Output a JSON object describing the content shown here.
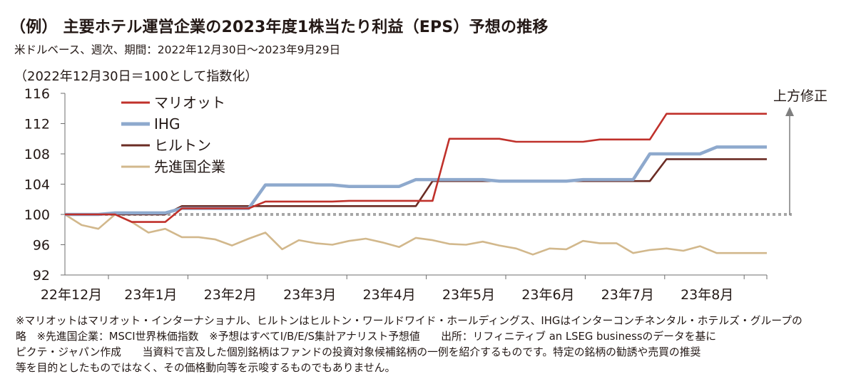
{
  "header": {
    "title": "（例） 主要ホテル運営企業の2023年度1株当たり利益（EPS）予想の推移",
    "subtitle": "米ドルベース、週次、期間：2022年12月30日〜2023年9月29日",
    "index_note": "（2022年12月30日＝100として指数化）"
  },
  "annotation": {
    "label": "上方修正"
  },
  "footnote": {
    "lines": [
      "※マリオットはマリオット・インターナショナル、ヒルトンはヒルトン・ワールドワイド・ホールディングス、IHGはインターコンチネンタル・ホテルズ・グループの",
      "略　※先進国企業：MSCI世界株価指数　※予想はすべてI/B/E/S集計アナリスト予想値　　出所：リフィニティブ an LSEG businessのデータを基に",
      "ピクテ・ジャパン作成　　当資料で言及した個別銘柄はファンドの投資対象候補銘柄の一例を紹介するものです。特定の銘柄の勧誘や売買の推奨",
      "等を目的としたものではなく、その価格動向等を示唆するものでもありません。"
    ]
  },
  "colors": {
    "marriott": "#c0312b",
    "ihg": "#8ea9cd",
    "hilton": "#6b2c24",
    "developed": "#d2b88c",
    "baseline": "#a6a6a6",
    "axis": "#6e6e6e",
    "arrow": "#7f7f7f"
  },
  "chart_data": {
    "type": "line",
    "x_labels": [
      "22年12月",
      "23年1月",
      "23年2月",
      "23年3月",
      "23年4月",
      "23年5月",
      "23年6月",
      "23年7月",
      "23年8月"
    ],
    "yticks": [
      92,
      96,
      100,
      104,
      108,
      112,
      116
    ],
    "ylim": [
      92,
      116
    ],
    "baseline": 100,
    "legend_position": "top-left",
    "series": [
      {
        "name": "マリオット",
        "color_key": "marriott",
        "values": [
          100,
          100,
          100,
          100,
          99,
          99,
          99,
          100.8,
          100.8,
          100.8,
          100.8,
          100.8,
          101.7,
          101.7,
          101.7,
          101.7,
          101.7,
          101.8,
          101.8,
          101.8,
          101.8,
          101.8,
          101.8,
          110,
          110,
          110,
          110,
          109.6,
          109.6,
          109.6,
          109.6,
          109.6,
          109.9,
          109.9,
          109.9,
          109.9,
          113.3,
          113.3,
          113.3,
          113.3,
          113.3,
          113.3,
          113.3
        ]
      },
      {
        "name": "IHG",
        "color_key": "ihg",
        "values": [
          100,
          100,
          100,
          100.2,
          100.2,
          100.2,
          100.2,
          100.8,
          100.8,
          100.8,
          100.8,
          100.8,
          103.9,
          103.9,
          103.9,
          103.9,
          103.9,
          103.7,
          103.7,
          103.7,
          103.7,
          104.6,
          104.6,
          104.6,
          104.6,
          104.6,
          104.4,
          104.4,
          104.4,
          104.4,
          104.4,
          104.6,
          104.6,
          104.6,
          104.6,
          108,
          108,
          108,
          108,
          108.9,
          108.9,
          108.9,
          108.9
        ]
      },
      {
        "name": "ヒルトン",
        "color_key": "hilton",
        "values": [
          100,
          100,
          100,
          100,
          100,
          100,
          100,
          101.1,
          101.1,
          101.1,
          101.1,
          101.1,
          101.1,
          101.1,
          101.1,
          101.1,
          101.1,
          101.1,
          101.1,
          101.1,
          101.1,
          101.1,
          104.4,
          104.4,
          104.4,
          104.4,
          104.4,
          104.4,
          104.4,
          104.4,
          104.4,
          104.4,
          104.4,
          104.4,
          104.4,
          104.4,
          107.3,
          107.3,
          107.3,
          107.3,
          107.3,
          107.3,
          107.3
        ]
      },
      {
        "name": "先進国企業",
        "color_key": "developed",
        "values": [
          100,
          98.6,
          98.1,
          100,
          99,
          97.6,
          98.1,
          97,
          97,
          96.7,
          95.9,
          96.8,
          97.6,
          95.4,
          96.6,
          96.2,
          96,
          96.5,
          96.8,
          96.3,
          95.7,
          96.9,
          96.6,
          96.1,
          96,
          96.4,
          95.9,
          95.5,
          94.7,
          95.5,
          95.4,
          96.5,
          96.2,
          96.2,
          94.9,
          95.3,
          95.5,
          95.2,
          95.8,
          94.9,
          94.9,
          94.9,
          94.9
        ]
      }
    ]
  }
}
